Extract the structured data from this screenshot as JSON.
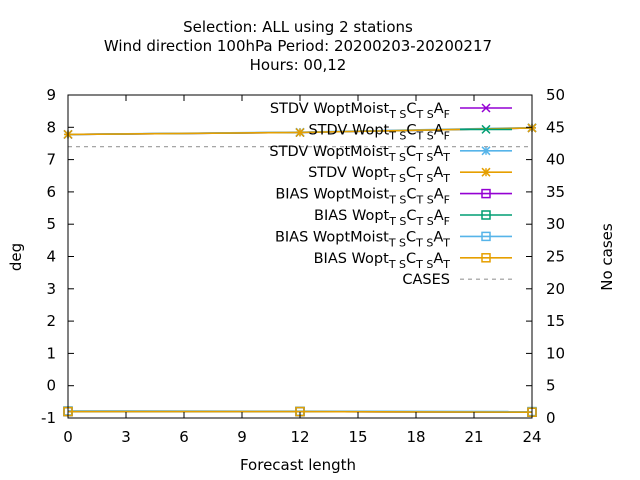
{
  "chart_data": {
    "type": "line",
    "title_lines": [
      "Selection: ALL using     2 stations",
      "Wind direction 100hPa   Period: 20200203-20200217",
      "Hours:  00,12"
    ],
    "xlabel": "Forecast length",
    "ylabel": "deg",
    "y2label": "No cases",
    "xlim": [
      0,
      24
    ],
    "ylim": [
      -1,
      9
    ],
    "y2lim": [
      0,
      50
    ],
    "xticks": [
      0,
      3,
      6,
      9,
      12,
      15,
      18,
      21,
      24
    ],
    "yticks": [
      -1,
      0,
      1,
      2,
      3,
      4,
      5,
      6,
      7,
      8,
      9
    ],
    "y2ticks": [
      0,
      5,
      10,
      15,
      20,
      25,
      30,
      35,
      40,
      45,
      50
    ],
    "grid": false,
    "legend_position": "top-right",
    "x": [
      0,
      12,
      24
    ],
    "series": [
      {
        "name": "STDV WoptMoist",
        "sub1": "T S",
        "mid": "C",
        "sub2": "T S",
        "end": "A",
        "sub3": "F",
        "color": "#9400d3",
        "marker": "cross",
        "dash": "solid",
        "values": [
          7.78,
          7.84,
          7.98
        ],
        "axis": "y"
      },
      {
        "name": "STDV Wopt",
        "sub1": "T S",
        "mid": "C",
        "sub2": "T S",
        "end": "A",
        "sub3": "F",
        "color": "#009e73",
        "marker": "cross",
        "dash": "solid",
        "values": [
          7.78,
          7.84,
          7.98
        ],
        "axis": "y"
      },
      {
        "name": "STDV WoptMoist",
        "sub1": "T S",
        "mid": "C",
        "sub2": "T S",
        "end": "A",
        "sub3": "T",
        "color": "#56b4e9",
        "marker": "star",
        "dash": "solid",
        "values": [
          7.78,
          7.85,
          7.99
        ],
        "axis": "y"
      },
      {
        "name": "STDV Wopt",
        "sub1": "T S",
        "mid": "C",
        "sub2": "T S",
        "end": "A",
        "sub3": "T",
        "color": "#e69f00",
        "marker": "star",
        "dash": "solid",
        "values": [
          7.78,
          7.84,
          7.98
        ],
        "axis": "y"
      },
      {
        "name": "BIAS WoptMoist",
        "sub1": "T S",
        "mid": "C",
        "sub2": "T S",
        "end": "A",
        "sub3": "F",
        "color": "#9400d3",
        "marker": "square",
        "dash": "solid",
        "values": [
          -0.8,
          -0.8,
          -0.82
        ],
        "axis": "y"
      },
      {
        "name": "BIAS Wopt",
        "sub1": "T S",
        "mid": "C",
        "sub2": "T S",
        "end": "A",
        "sub3": "F",
        "color": "#009e73",
        "marker": "square",
        "dash": "solid",
        "values": [
          -0.8,
          -0.8,
          -0.82
        ],
        "axis": "y"
      },
      {
        "name": "BIAS WoptMoist",
        "sub1": "T S",
        "mid": "C",
        "sub2": "T S",
        "end": "A",
        "sub3": "T",
        "color": "#56b4e9",
        "marker": "square",
        "dash": "solid",
        "values": [
          -0.78,
          -0.79,
          -0.8
        ],
        "axis": "y"
      },
      {
        "name": "BIAS Wopt",
        "sub1": "T S",
        "mid": "C",
        "sub2": "T S",
        "end": "A",
        "sub3": "T",
        "color": "#e69f00",
        "marker": "square",
        "dash": "solid",
        "values": [
          -0.8,
          -0.8,
          -0.82
        ],
        "axis": "y"
      },
      {
        "name": "CASES",
        "color": "#999999",
        "marker": "none",
        "dash": "dashed",
        "values": [
          42,
          42,
          42
        ],
        "axis": "y2"
      }
    ]
  }
}
